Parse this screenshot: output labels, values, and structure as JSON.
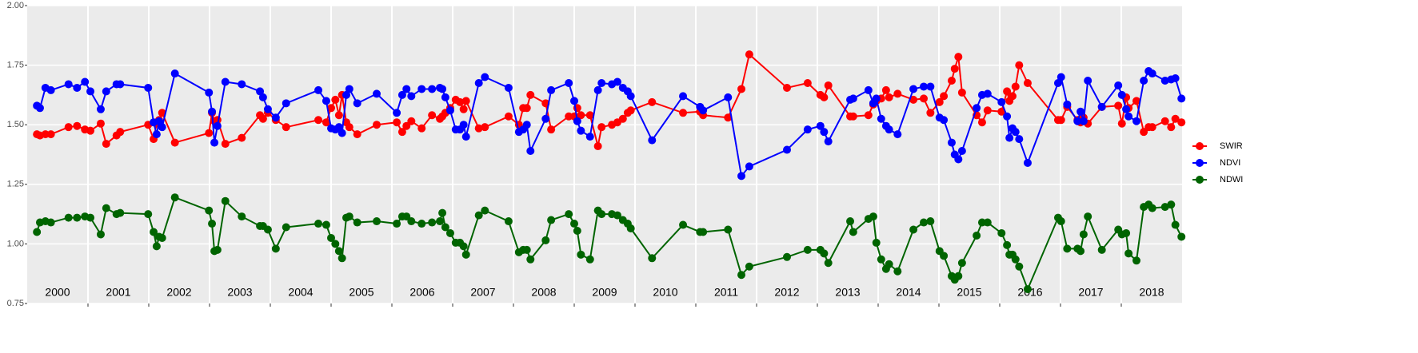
{
  "chart_data": {
    "type": "line",
    "x": [
      2000.16,
      2000.21,
      2000.3,
      2000.39,
      2000.68,
      2000.82,
      2000.95,
      2001.04,
      2001.21,
      2001.3,
      2001.47,
      2001.53,
      2001.99,
      2002.08,
      2002.13,
      2002.17,
      2002.22,
      2002.43,
      2002.99,
      2003.04,
      2003.08,
      2003.13,
      2003.26,
      2003.53,
      2003.83,
      2003.88,
      2003.96,
      2004.09,
      2004.26,
      2004.79,
      2004.92,
      2005.0,
      2005.07,
      2005.13,
      2005.18,
      2005.25,
      2005.3,
      2005.43,
      2005.75,
      2006.08,
      2006.17,
      2006.24,
      2006.32,
      2006.49,
      2006.66,
      2006.79,
      2006.83,
      2006.88,
      2006.96,
      2007.05,
      2007.12,
      2007.18,
      2007.22,
      2007.43,
      2007.53,
      2007.92,
      2008.09,
      2008.16,
      2008.22,
      2008.28,
      2008.53,
      2008.62,
      2008.91,
      2009.0,
      2009.05,
      2009.11,
      2009.26,
      2009.39,
      2009.45,
      2009.62,
      2009.71,
      2009.8,
      2009.88,
      2009.93,
      2010.28,
      2010.79,
      2011.07,
      2011.12,
      2011.53,
      2011.75,
      2011.88,
      2012.5,
      2012.84,
      2013.05,
      2013.11,
      2013.18,
      2013.54,
      2013.59,
      2013.84,
      2013.92,
      2013.97,
      2014.05,
      2014.13,
      2014.18,
      2014.32,
      2014.58,
      2014.75,
      2014.86,
      2015.01,
      2015.08,
      2015.21,
      2015.26,
      2015.32,
      2015.38,
      2015.62,
      2015.71,
      2015.8,
      2016.03,
      2016.12,
      2016.16,
      2016.21,
      2016.26,
      2016.32,
      2016.46,
      2016.96,
      2017.01,
      2017.11,
      2017.28,
      2017.33,
      2017.38,
      2017.45,
      2017.68,
      2017.95,
      2018.01,
      2018.08,
      2018.12,
      2018.25,
      2018.37,
      2018.45,
      2018.51,
      2018.72,
      2018.82,
      2018.89,
      2018.99
    ],
    "series": [
      {
        "name": "SWIR",
        "color": "#ff0000",
        "values": [
          1.46,
          1.455,
          1.46,
          1.46,
          1.49,
          1.495,
          1.48,
          1.475,
          1.505,
          1.42,
          1.455,
          1.47,
          1.5,
          1.44,
          1.505,
          1.52,
          1.55,
          1.425,
          1.465,
          1.55,
          1.515,
          1.52,
          1.42,
          1.445,
          1.54,
          1.525,
          1.55,
          1.52,
          1.49,
          1.52,
          1.51,
          1.57,
          1.605,
          1.54,
          1.625,
          1.51,
          1.49,
          1.46,
          1.5,
          1.51,
          1.47,
          1.495,
          1.515,
          1.485,
          1.54,
          1.525,
          1.535,
          1.55,
          1.57,
          1.605,
          1.595,
          1.565,
          1.6,
          1.485,
          1.49,
          1.535,
          1.5,
          1.57,
          1.57,
          1.625,
          1.59,
          1.48,
          1.535,
          1.535,
          1.57,
          1.54,
          1.54,
          1.41,
          1.49,
          1.5,
          1.51,
          1.525,
          1.55,
          1.56,
          1.595,
          1.55,
          1.555,
          1.54,
          1.53,
          1.65,
          1.795,
          1.655,
          1.675,
          1.625,
          1.615,
          1.665,
          1.535,
          1.535,
          1.54,
          1.585,
          1.6,
          1.61,
          1.645,
          1.615,
          1.63,
          1.605,
          1.61,
          1.55,
          1.595,
          1.62,
          1.685,
          1.735,
          1.785,
          1.635,
          1.54,
          1.51,
          1.56,
          1.555,
          1.64,
          1.6,
          1.62,
          1.66,
          1.75,
          1.675,
          1.52,
          1.52,
          1.575,
          1.52,
          1.51,
          1.53,
          1.505,
          1.575,
          1.58,
          1.505,
          1.615,
          1.57,
          1.6,
          1.47,
          1.49,
          1.49,
          1.515,
          1.49,
          1.525,
          1.51
        ]
      },
      {
        "name": "NDVI",
        "color": "#0000ff",
        "values": [
          1.58,
          1.57,
          1.655,
          1.645,
          1.67,
          1.655,
          1.68,
          1.64,
          1.565,
          1.64,
          1.67,
          1.67,
          1.655,
          1.51,
          1.46,
          1.515,
          1.49,
          1.715,
          1.635,
          1.555,
          1.425,
          1.495,
          1.68,
          1.67,
          1.64,
          1.615,
          1.565,
          1.53,
          1.59,
          1.645,
          1.6,
          1.485,
          1.48,
          1.49,
          1.465,
          1.625,
          1.65,
          1.59,
          1.63,
          1.55,
          1.625,
          1.65,
          1.62,
          1.65,
          1.65,
          1.655,
          1.65,
          1.615,
          1.56,
          1.48,
          1.48,
          1.5,
          1.45,
          1.675,
          1.7,
          1.655,
          1.47,
          1.48,
          1.5,
          1.39,
          1.525,
          1.645,
          1.675,
          1.6,
          1.515,
          1.475,
          1.45,
          1.645,
          1.675,
          1.67,
          1.68,
          1.655,
          1.64,
          1.62,
          1.435,
          1.62,
          1.575,
          1.56,
          1.615,
          1.285,
          1.325,
          1.395,
          1.48,
          1.495,
          1.47,
          1.43,
          1.605,
          1.61,
          1.645,
          1.59,
          1.61,
          1.525,
          1.495,
          1.48,
          1.46,
          1.65,
          1.66,
          1.66,
          1.53,
          1.52,
          1.425,
          1.375,
          1.355,
          1.39,
          1.57,
          1.625,
          1.63,
          1.595,
          1.535,
          1.445,
          1.485,
          1.47,
          1.44,
          1.34,
          1.675,
          1.7,
          1.585,
          1.515,
          1.555,
          1.515,
          1.685,
          1.575,
          1.665,
          1.625,
          1.565,
          1.535,
          1.515,
          1.685,
          1.725,
          1.715,
          1.685,
          1.69,
          1.695,
          1.61
        ]
      },
      {
        "name": "NDWI",
        "color": "#006400",
        "values": [
          1.05,
          1.09,
          1.095,
          1.09,
          1.11,
          1.11,
          1.115,
          1.11,
          1.04,
          1.15,
          1.125,
          1.13,
          1.125,
          1.05,
          0.99,
          1.03,
          1.025,
          1.195,
          1.14,
          1.085,
          0.97,
          0.975,
          1.18,
          1.115,
          1.075,
          1.075,
          1.06,
          0.98,
          1.07,
          1.085,
          1.08,
          1.025,
          1.0,
          0.97,
          0.94,
          1.11,
          1.115,
          1.09,
          1.095,
          1.085,
          1.115,
          1.115,
          1.095,
          1.085,
          1.09,
          1.095,
          1.13,
          1.07,
          1.045,
          1.005,
          1.005,
          0.99,
          0.955,
          1.12,
          1.14,
          1.095,
          0.965,
          0.975,
          0.975,
          0.935,
          1.015,
          1.1,
          1.125,
          1.085,
          1.055,
          0.955,
          0.935,
          1.14,
          1.125,
          1.125,
          1.12,
          1.1,
          1.085,
          1.065,
          0.94,
          1.08,
          1.05,
          1.05,
          1.06,
          0.87,
          0.905,
          0.945,
          0.975,
          0.975,
          0.96,
          0.92,
          1.095,
          1.05,
          1.105,
          1.115,
          1.005,
          0.935,
          0.895,
          0.915,
          0.885,
          1.06,
          1.09,
          1.095,
          0.97,
          0.95,
          0.865,
          0.85,
          0.865,
          0.92,
          1.035,
          1.09,
          1.09,
          1.045,
          0.995,
          0.955,
          0.955,
          0.935,
          0.905,
          0.81,
          1.11,
          1.095,
          0.98,
          0.98,
          0.97,
          1.04,
          1.115,
          0.975,
          1.06,
          1.04,
          1.045,
          0.96,
          0.93,
          1.155,
          1.165,
          1.15,
          1.155,
          1.165,
          1.08,
          1.03
        ]
      }
    ],
    "xlim": [
      2000,
      2019
    ],
    "xticks": [
      2001,
      2002,
      2003,
      2004,
      2005,
      2006,
      2007,
      2008,
      2009,
      2010,
      2011,
      2012,
      2013,
      2014,
      2015,
      2016,
      2017,
      2018
    ],
    "year_labels": [
      {
        "value": 2000.5,
        "label": "2000"
      },
      {
        "value": 2001.5,
        "label": "2001"
      },
      {
        "value": 2002.5,
        "label": "2002"
      },
      {
        "value": 2003.5,
        "label": "2003"
      },
      {
        "value": 2004.5,
        "label": "2004"
      },
      {
        "value": 2005.5,
        "label": "2005"
      },
      {
        "value": 2006.5,
        "label": "2006"
      },
      {
        "value": 2007.5,
        "label": "2007"
      },
      {
        "value": 2008.5,
        "label": "2008"
      },
      {
        "value": 2009.5,
        "label": "2009"
      },
      {
        "value": 2010.5,
        "label": "2010"
      },
      {
        "value": 2011.5,
        "label": "2011"
      },
      {
        "value": 2012.5,
        "label": "2012"
      },
      {
        "value": 2013.5,
        "label": "2013"
      },
      {
        "value": 2014.5,
        "label": "2014"
      },
      {
        "value": 2015.5,
        "label": "2015"
      },
      {
        "value": 2016.5,
        "label": "2016"
      },
      {
        "value": 2017.5,
        "label": "2017"
      },
      {
        "value": 2018.5,
        "label": "2018"
      }
    ],
    "ylim": [
      0.75,
      2.0
    ],
    "yticks": [
      {
        "value": 0.75,
        "label": "0.75"
      },
      {
        "value": 1,
        "label": "1.00"
      },
      {
        "value": 1.25,
        "label": "1.25"
      },
      {
        "value": 1.5,
        "label": "1.50"
      },
      {
        "value": 1.75,
        "label": "1.75"
      },
      {
        "value": 2,
        "label": "2.00"
      }
    ],
    "grid": true,
    "legend": "right"
  }
}
